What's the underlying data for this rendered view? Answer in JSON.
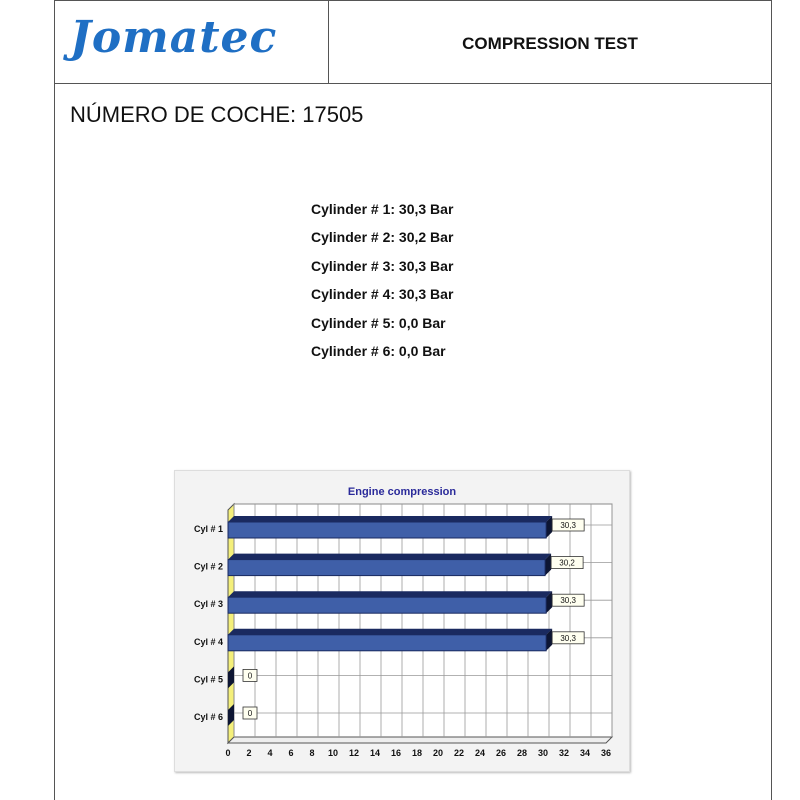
{
  "header": {
    "logo": "Jomatec",
    "title": "COMPRESSION TEST"
  },
  "car_number": "NÚMERO DE COCHE: 17505",
  "readings": [
    "Cylinder # 1: 30,3 Bar",
    "Cylinder # 2: 30,2 Bar",
    "Cylinder # 3: 30,3 Bar",
    "Cylinder # 4: 30,3 Bar",
    "Cylinder # 5:  0,0 Bar",
    "Cylinder # 6:  0,0 Bar"
  ],
  "chart_data": {
    "type": "bar",
    "orientation": "horizontal",
    "title": "Engine compression",
    "categories": [
      "Cyl # 1",
      "Cyl # 2",
      "Cyl # 3",
      "Cyl # 4",
      "Cyl # 5",
      "Cyl # 6"
    ],
    "values": [
      30.3,
      30.2,
      30.3,
      30.3,
      0,
      0
    ],
    "data_labels": [
      "30,3",
      "30,2",
      "30,3",
      "30,3",
      "0",
      "0"
    ],
    "xlim": [
      0,
      36
    ],
    "xticks": [
      0,
      2,
      4,
      6,
      8,
      10,
      12,
      14,
      16,
      18,
      20,
      22,
      24,
      26,
      28,
      30,
      32,
      34,
      36
    ],
    "grid": true,
    "bar_color": "#3f5fa8",
    "style": "3d"
  }
}
